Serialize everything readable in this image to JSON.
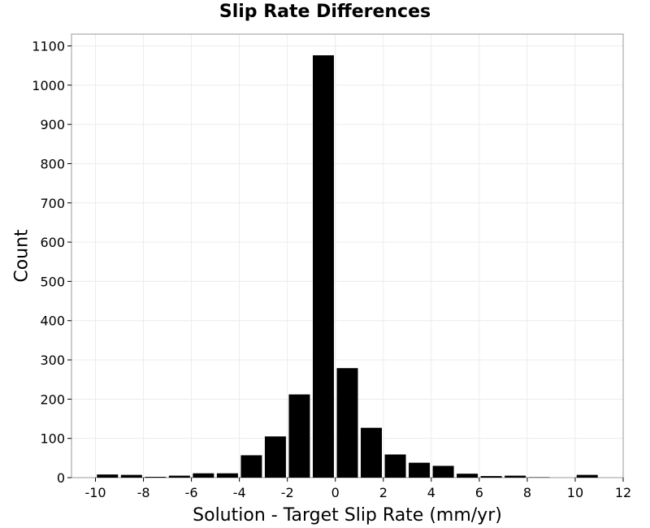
{
  "chart_data": {
    "type": "bar",
    "title": "Slip Rate Differences",
    "xlabel": "Solution - Target Slip Rate (mm/yr)",
    "ylabel": "Count",
    "xlim": [
      -11,
      12
    ],
    "ylim": [
      0,
      1130
    ],
    "xticks": [
      -10,
      -8,
      -6,
      -4,
      -2,
      0,
      2,
      4,
      6,
      8,
      10,
      12
    ],
    "yticks": [
      0,
      100,
      200,
      300,
      400,
      500,
      600,
      700,
      800,
      900,
      1000,
      1100
    ],
    "bin_width": 1,
    "bins": [
      {
        "x": -10,
        "count": 8
      },
      {
        "x": -9,
        "count": 7
      },
      {
        "x": -8,
        "count": 2
      },
      {
        "x": -7,
        "count": 5
      },
      {
        "x": -6,
        "count": 11
      },
      {
        "x": -5,
        "count": 11
      },
      {
        "x": -4,
        "count": 57
      },
      {
        "x": -3,
        "count": 105
      },
      {
        "x": -2,
        "count": 212
      },
      {
        "x": -1,
        "count": 1076
      },
      {
        "x": 0,
        "count": 279
      },
      {
        "x": 1,
        "count": 127
      },
      {
        "x": 2,
        "count": 59
      },
      {
        "x": 3,
        "count": 38
      },
      {
        "x": 4,
        "count": 30
      },
      {
        "x": 5,
        "count": 10
      },
      {
        "x": 6,
        "count": 4
      },
      {
        "x": 7,
        "count": 5
      },
      {
        "x": 8,
        "count": 1
      },
      {
        "x": 9,
        "count": 0
      },
      {
        "x": 10,
        "count": 7
      }
    ],
    "grid": true,
    "bar_color": "#000000"
  }
}
